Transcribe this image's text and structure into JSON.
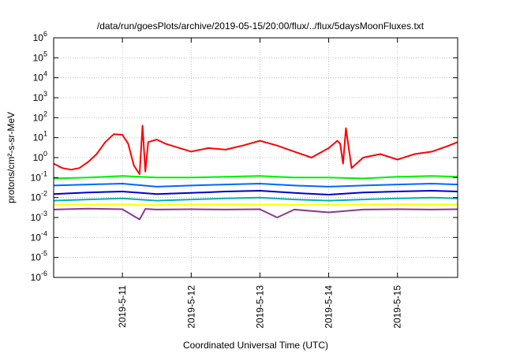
{
  "chart_data": {
    "type": "line",
    "title": "/data/run/goesPlots/archive/2019-05-15/20:00/flux/../flux/5daysMoonFluxes.txt",
    "xlabel": "Coordinated Universal Time (UTC)",
    "ylabel": "protons/cm²-s-sr-MeV",
    "y_scale": "log",
    "ylim_exp": [
      -6,
      6
    ],
    "y_ticks": [
      {
        "base": "10",
        "exp": "-6"
      },
      {
        "base": "10",
        "exp": "-5"
      },
      {
        "base": "10",
        "exp": "-4"
      },
      {
        "base": "10",
        "exp": "-3"
      },
      {
        "base": "10",
        "exp": "-2"
      },
      {
        "base": "10",
        "exp": "-1"
      },
      {
        "base": "10",
        "exp": "0"
      },
      {
        "base": "10",
        "exp": "1"
      },
      {
        "base": "10",
        "exp": "2"
      },
      {
        "base": "10",
        "exp": "3"
      },
      {
        "base": "10",
        "exp": "4"
      },
      {
        "base": "10",
        "exp": "5"
      },
      {
        "base": "10",
        "exp": "6"
      }
    ],
    "x_range_days": [
      "2019-05-10 00:00",
      "2019-05-15 21:00"
    ],
    "x_ticks": [
      "2019-5-11",
      "2019-5-12",
      "2019-5-13",
      "2019-5-14",
      "2019-5-15"
    ],
    "grid": true,
    "legend": "none",
    "series": [
      {
        "color": "#ff0000",
        "x": [
          "2019-05-10 00:00",
          "2019-05-10 03:00",
          "2019-05-10 06:00",
          "2019-05-10 09:00",
          "2019-05-10 12:00",
          "2019-05-10 15:00",
          "2019-05-10 18:00",
          "2019-05-10 21:00",
          "2019-05-11 00:00",
          "2019-05-11 02:00",
          "2019-05-11 04:00",
          "2019-05-11 06:00",
          "2019-05-11 07:00",
          "2019-05-11 08:00",
          "2019-05-11 09:00",
          "2019-05-11 12:00",
          "2019-05-11 15:00",
          "2019-05-12 00:00",
          "2019-05-12 06:00",
          "2019-05-12 12:00",
          "2019-05-12 18:00",
          "2019-05-13 00:00",
          "2019-05-13 06:00",
          "2019-05-13 12:00",
          "2019-05-13 18:00",
          "2019-05-14 00:00",
          "2019-05-14 03:00",
          "2019-05-14 04:00",
          "2019-05-14 05:00",
          "2019-05-14 06:00",
          "2019-05-14 08:00",
          "2019-05-14 12:00",
          "2019-05-14 18:00",
          "2019-05-15 00:00",
          "2019-05-15 06:00",
          "2019-05-15 12:00",
          "2019-05-15 18:00",
          "2019-05-15 21:00"
        ],
        "y": [
          0.5,
          0.3,
          0.25,
          0.3,
          0.6,
          1.5,
          6,
          15,
          14,
          5,
          0.4,
          0.15,
          40,
          0.2,
          6,
          8,
          5,
          2,
          3,
          2.5,
          4,
          7,
          4,
          2,
          1,
          3,
          7,
          5,
          0.5,
          30,
          0.3,
          1,
          1.5,
          0.8,
          1.5,
          2,
          4,
          6
        ]
      },
      {
        "color": "#00ee00",
        "x": [
          "2019-05-10 00:00",
          "2019-05-10 12:00",
          "2019-05-11 00:00",
          "2019-05-11 12:00",
          "2019-05-12 00:00",
          "2019-05-12 12:00",
          "2019-05-13 00:00",
          "2019-05-13 12:00",
          "2019-05-14 00:00",
          "2019-05-14 12:00",
          "2019-05-15 00:00",
          "2019-05-15 12:00",
          "2019-05-15 21:00"
        ],
        "y": [
          0.09,
          0.1,
          0.12,
          0.1,
          0.1,
          0.11,
          0.12,
          0.1,
          0.1,
          0.09,
          0.11,
          0.12,
          0.11
        ]
      },
      {
        "color": "#0066ff",
        "x": [
          "2019-05-10 00:00",
          "2019-05-10 12:00",
          "2019-05-11 00:00",
          "2019-05-11 12:00",
          "2019-05-12 00:00",
          "2019-05-12 12:00",
          "2019-05-13 00:00",
          "2019-05-13 12:00",
          "2019-05-14 00:00",
          "2019-05-14 12:00",
          "2019-05-15 00:00",
          "2019-05-15 12:00",
          "2019-05-15 21:00"
        ],
        "y": [
          0.04,
          0.045,
          0.05,
          0.035,
          0.04,
          0.045,
          0.05,
          0.04,
          0.035,
          0.04,
          0.045,
          0.05,
          0.045
        ]
      },
      {
        "color": "#0000cc",
        "x": [
          "2019-05-10 00:00",
          "2019-05-10 12:00",
          "2019-05-11 00:00",
          "2019-05-11 12:00",
          "2019-05-12 00:00",
          "2019-05-12 12:00",
          "2019-05-13 00:00",
          "2019-05-13 12:00",
          "2019-05-14 00:00",
          "2019-05-14 12:00",
          "2019-05-15 00:00",
          "2019-05-15 12:00",
          "2019-05-15 21:00"
        ],
        "y": [
          0.015,
          0.018,
          0.02,
          0.015,
          0.017,
          0.02,
          0.022,
          0.017,
          0.014,
          0.018,
          0.02,
          0.022,
          0.02
        ]
      },
      {
        "color": "#00b0b0",
        "x": [
          "2019-05-10 00:00",
          "2019-05-10 12:00",
          "2019-05-11 00:00",
          "2019-05-11 12:00",
          "2019-05-12 00:00",
          "2019-05-12 12:00",
          "2019-05-13 00:00",
          "2019-05-13 12:00",
          "2019-05-14 00:00",
          "2019-05-14 12:00",
          "2019-05-15 00:00",
          "2019-05-15 12:00",
          "2019-05-15 21:00"
        ],
        "y": [
          0.007,
          0.008,
          0.009,
          0.007,
          0.008,
          0.009,
          0.01,
          0.008,
          0.007,
          0.008,
          0.009,
          0.01,
          0.009
        ]
      },
      {
        "color": "#ffff00",
        "x": [
          "2019-05-10 00:00",
          "2019-05-10 12:00",
          "2019-05-11 00:00",
          "2019-05-11 12:00",
          "2019-05-12 00:00",
          "2019-05-12 12:00",
          "2019-05-13 00:00",
          "2019-05-13 12:00",
          "2019-05-14 00:00",
          "2019-05-14 12:00",
          "2019-05-15 00:00",
          "2019-05-15 12:00",
          "2019-05-15 21:00"
        ],
        "y": [
          0.0045,
          0.0045,
          0.0046,
          0.0044,
          0.0045,
          0.0046,
          0.0045,
          0.0044,
          0.0044,
          0.0045,
          0.0046,
          0.0045,
          0.0045
        ]
      },
      {
        "color": "#8b3a8b",
        "x": [
          "2019-05-10 00:00",
          "2019-05-10 12:00",
          "2019-05-11 00:00",
          "2019-05-11 06:00",
          "2019-05-11 08:00",
          "2019-05-11 12:00",
          "2019-05-12 00:00",
          "2019-05-12 12:00",
          "2019-05-13 00:00",
          "2019-05-13 06:00",
          "2019-05-13 12:00",
          "2019-05-14 00:00",
          "2019-05-14 12:00",
          "2019-05-15 00:00",
          "2019-05-15 12:00",
          "2019-05-15 21:00"
        ],
        "y": [
          0.0025,
          0.0028,
          0.0026,
          0.0008,
          0.0027,
          0.0025,
          0.0026,
          0.0025,
          0.0026,
          0.001,
          0.0025,
          0.0018,
          0.0025,
          0.0026,
          0.0025,
          0.0026
        ]
      }
    ]
  }
}
